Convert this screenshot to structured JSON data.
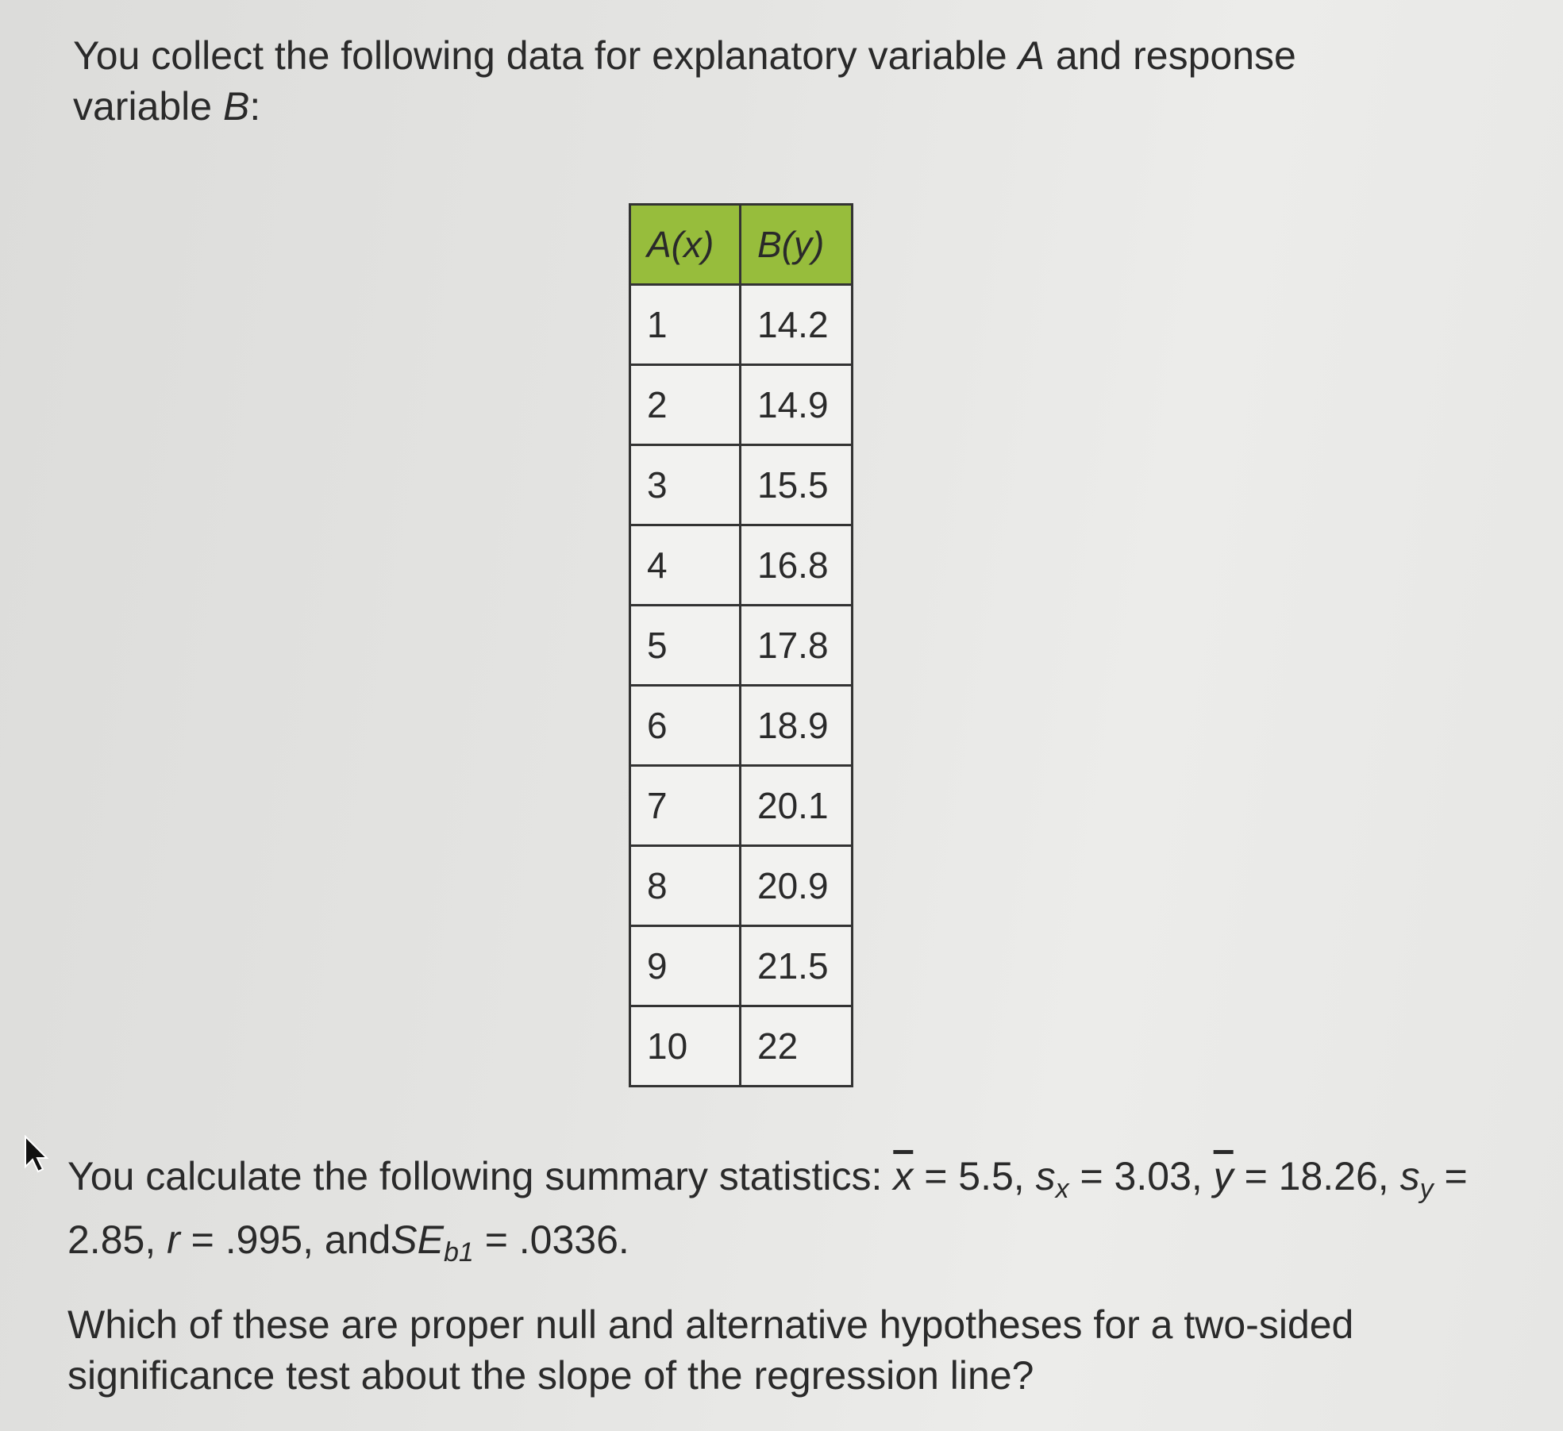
{
  "intro": {
    "text_before_a": "You collect the following data for explanatory variable ",
    "var_a": "A",
    "text_mid": " and response variable ",
    "var_b": "B",
    "text_end": ":"
  },
  "table": {
    "headers": [
      "A(x)",
      "B(y)"
    ],
    "rows": [
      [
        "1",
        "14.2"
      ],
      [
        "2",
        "14.9"
      ],
      [
        "3",
        "15.5"
      ],
      [
        "4",
        "16.8"
      ],
      [
        "5",
        "17.8"
      ],
      [
        "6",
        "18.9"
      ],
      [
        "7",
        "20.1"
      ],
      [
        "8",
        "20.9"
      ],
      [
        "9",
        "21.5"
      ],
      [
        "10",
        "22"
      ]
    ],
    "header_color": "#97bd3c"
  },
  "stats": {
    "lead": "You calculate the following summary statistics: ",
    "xbar_sym": "x",
    "xbar_val": " = 5.5, ",
    "sx_sym": "s",
    "sx_sub": "x",
    "sx_val": " = 3.03, ",
    "ybar_sym": "y",
    "ybar_val": " = 18.26, ",
    "sy_sym": "s",
    "sy_sub": "y",
    "sy_val": " = 2.85, ",
    "r_sym": "r",
    "r_val": " = .995, and",
    "se_sym": "SE",
    "se_sub": "b1",
    "se_val": " = .0336."
  },
  "question": "Which of these are proper null and alternative hypotheses for a two-sided significance test about the slope of the regression line?",
  "cursor_icon": "mouse-pointer-arrow"
}
